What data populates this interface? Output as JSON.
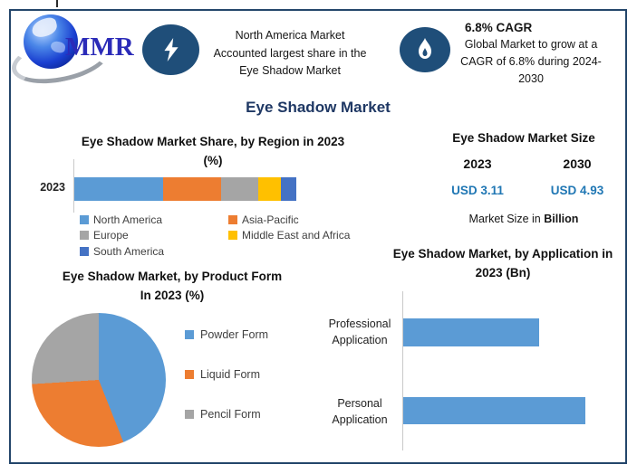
{
  "brand": {
    "logo_text": "MMR"
  },
  "header": {
    "highlight": {
      "line1": "North America Market",
      "line2": "Accounted largest share in the",
      "line3": "Eye Shadow Market"
    },
    "cagr": {
      "heading": "6.8% CAGR",
      "body": "Global Market to grow at a CAGR of 6.8% during 2024-2030"
    }
  },
  "main_title": "Eye Shadow Market",
  "region_chart": {
    "title_line1": "Eye Shadow Market Share, by Region in 2023",
    "title_line2": "(%)",
    "year_label": "2023"
  },
  "market_size": {
    "title": "Eye Shadow Market Size",
    "col1_year": "2023",
    "col2_year": "2030",
    "col1_value": "USD 3.11",
    "col2_value": "USD 4.93",
    "footnote_prefix": "Market Size in",
    "footnote_bold": "Billion",
    "value_color": "#2077B4"
  },
  "product_chart": {
    "title_line1": "Eye Shadow Market, by Product Form",
    "title_line2": "In 2023 (%)"
  },
  "application_chart": {
    "title_line1": "Eye Shadow Market, by Application in",
    "title_line2": "2023 (Bn)",
    "categories": [
      {
        "line1": "Professional",
        "line2": "Application"
      },
      {
        "line1": "Personal",
        "line2": "Application"
      }
    ]
  },
  "chart_data": [
    {
      "type": "bar",
      "variant": "stacked-horizontal",
      "title": "Eye Shadow Market Share, by Region in 2023 (%)",
      "categories": [
        "2023"
      ],
      "series": [
        {
          "name": "North America",
          "values": [
            40
          ],
          "color": "#5B9BD5"
        },
        {
          "name": "Asia-Pacific",
          "values": [
            26
          ],
          "color": "#ED7D31"
        },
        {
          "name": "Europe",
          "values": [
            17
          ],
          "color": "#A5A5A5"
        },
        {
          "name": "Middle East and Africa",
          "values": [
            10
          ],
          "color": "#FFC000"
        },
        {
          "name": "South America",
          "values": [
            7
          ],
          "color": "#4472C4"
        }
      ],
      "xlim": [
        0,
        100
      ],
      "legend_position": "bottom",
      "grid": false
    },
    {
      "type": "pie",
      "title": "Eye Shadow Market, by Product Form In 2023 (%)",
      "labels": [
        "Powder Form",
        "Liquid Form",
        "Pencil Form"
      ],
      "values": [
        44,
        30,
        26
      ],
      "colors": [
        "#5B9BD5",
        "#ED7D31",
        "#A5A5A5"
      ],
      "start_angle_deg": 0,
      "legend_position": "right"
    },
    {
      "type": "bar",
      "variant": "horizontal",
      "title": "Eye Shadow Market, by Application in 2023 (Bn)",
      "categories": [
        "Professional Application",
        "Personal Application"
      ],
      "values": [
        1.33,
        1.78
      ],
      "values_estimated": true,
      "color": "#5B9BD5",
      "xlim": [
        0,
        1.9
      ],
      "grid": false
    }
  ]
}
